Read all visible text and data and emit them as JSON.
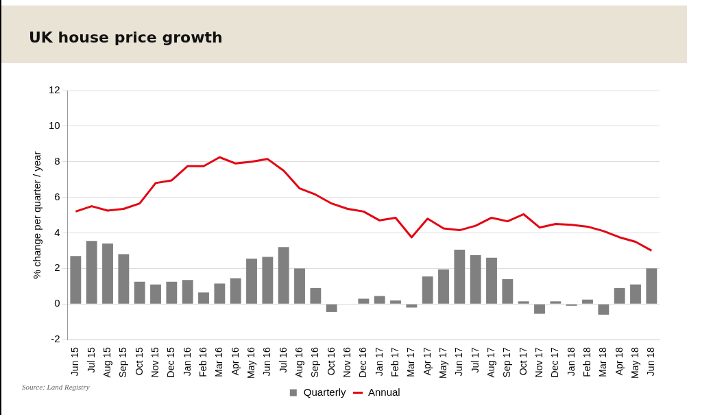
{
  "chart_data": {
    "type": "bar",
    "title": "UK house price growth",
    "ylabel": "% change per quarter / year",
    "categories": [
      "Jun 15",
      "Jul 15",
      "Aug 15",
      "Sep 15",
      "Oct 15",
      "Nov 15",
      "Dec 15",
      "Jan 16",
      "Feb 16",
      "Mar 16",
      "Apr 16",
      "May 16",
      "Jun 16",
      "Jul 16",
      "Aug 16",
      "Sep 16",
      "Oct 16",
      "Nov 16",
      "Dec 16",
      "Jan 17",
      "Feb 17",
      "Mar 17",
      "Apr 17",
      "May 17",
      "Jun 17",
      "Jul 17",
      "Aug 17",
      "Sep 17",
      "Oct 17",
      "Nov 17",
      "Dec 17",
      "Jan 18",
      "Feb 18",
      "Mar 18",
      "Apr 18",
      "May 18",
      "Jun 18"
    ],
    "series": [
      {
        "name": "Quarterly",
        "color": "#808080",
        "values": [
          2.7,
          3.55,
          3.4,
          2.8,
          1.25,
          1.1,
          1.25,
          1.35,
          0.65,
          1.15,
          1.45,
          2.55,
          2.65,
          3.2,
          2.0,
          0.9,
          -0.45,
          0,
          0.3,
          0.45,
          0.2,
          -0.2,
          1.55,
          1.95,
          3.05,
          2.75,
          2.6,
          1.4,
          0.15,
          -0.55,
          0.15,
          -0.1,
          0.25,
          -0.6,
          0.9,
          1.1,
          2.0
        ]
      },
      {
        "name": "Annual",
        "type": "line",
        "color": "#e30613",
        "values": [
          5.2,
          5.5,
          5.25,
          5.35,
          5.65,
          6.8,
          6.95,
          7.75,
          7.75,
          8.25,
          7.9,
          8.0,
          8.15,
          7.5,
          6.5,
          6.15,
          5.65,
          5.35,
          5.2,
          4.7,
          4.85,
          3.75,
          4.8,
          4.25,
          4.15,
          4.4,
          4.85,
          4.65,
          5.05,
          4.3,
          4.5,
          4.45,
          4.35,
          4.1,
          3.75,
          3.5,
          3.0
        ]
      }
    ],
    "ylim": [
      -2,
      12
    ],
    "yticks": [
      -2,
      0,
      2,
      4,
      6,
      8,
      10,
      12
    ],
    "grid": "y",
    "legend": "bottom",
    "marker": "none",
    "line_style": "solid",
    "annotations": [
      "Source: Land Registry"
    ]
  }
}
